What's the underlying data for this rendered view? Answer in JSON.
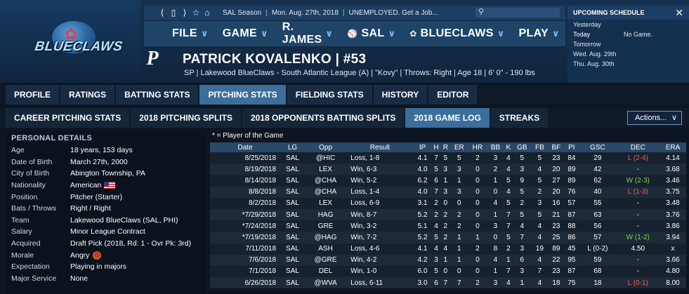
{
  "topbar": {
    "league": "SAL Season",
    "date": "Mon. Aug. 27th, 2018",
    "status": "UNEMPLOYED. Get a Job..."
  },
  "brand": {
    "logo_text": "BLUECLAWS",
    "player_team_logo": "P"
  },
  "mainnav": {
    "file": "FILE",
    "game": "GAME",
    "manager": "R. JAMES",
    "league": "SAL",
    "team": "BLUECLAWS",
    "play": "PLAY"
  },
  "player": {
    "name": "PATRICK KOVALENKO  |  #53",
    "info": "SP | Lakewood BlueClaws - South Atlantic League (A)  |  \"Kovy\"  |  Throws: Right  |  Age 18  |  6' 0\" - 190 lbs"
  },
  "schedule": {
    "title": "UPCOMING SCHEDULE",
    "rows": [
      {
        "day": "Yesterday",
        "info": ""
      },
      {
        "day": "Today",
        "info": "No Game."
      },
      {
        "day": "Tomorrow",
        "info": ""
      },
      {
        "day": "Wed. Aug. 29th",
        "info": ""
      },
      {
        "day": "Thu. Aug. 30th",
        "info": ""
      }
    ]
  },
  "tabs": [
    "PROFILE",
    "RATINGS",
    "BATTING STATS",
    "PITCHING STATS",
    "FIELDING STATS",
    "HISTORY",
    "EDITOR"
  ],
  "subtabs": [
    "CAREER PITCHING STATS",
    "2018 PITCHING SPLITS",
    "2018 OPPONENTS BATTING SPLITS",
    "2018 GAME LOG",
    "STREAKS"
  ],
  "actions_label": "Actions...",
  "personal": {
    "title": "PERSONAL DETAILS",
    "rows": [
      {
        "k": "Age",
        "v": "18 years, 153 days"
      },
      {
        "k": "Date of Birth",
        "v": "March 27th, 2000"
      },
      {
        "k": "City of Birth",
        "v": "Abington Township, PA"
      },
      {
        "k": "Nationality",
        "v": "American"
      },
      {
        "k": "Position",
        "v": "Pitcher (Starter)"
      },
      {
        "k": "Bats / Throws",
        "v": "Right / Right"
      },
      {
        "k": "Team",
        "v": "Lakewood BlueClaws (SAL, PHI)"
      },
      {
        "k": "Salary",
        "v": "Minor League Contract"
      },
      {
        "k": "Acquired",
        "v": "Draft Pick (2018, Rd: 1 - Ovr Pk: 3rd)"
      },
      {
        "k": "Morale",
        "v": "Angry"
      },
      {
        "k": "Expectation",
        "v": "Playing in majors"
      },
      {
        "k": "Major Service",
        "v": "None"
      }
    ]
  },
  "gamelog": {
    "note": "* = Player of the Game",
    "headers": [
      "Date",
      "LG",
      "Opp",
      "Result",
      "IP",
      "H",
      "R",
      "ER",
      "HR",
      "BB",
      "K",
      "GB",
      "FB",
      "BF",
      "PI",
      "GSC",
      "DEC",
      "ERA"
    ],
    "rows": [
      [
        "8/25/2018",
        "SAL",
        "@HIC",
        "Loss, 1-8",
        "4.1",
        "7",
        "5",
        "5",
        "2",
        "3",
        "4",
        "5",
        "5",
        "23",
        "84",
        "29",
        "L (2-4)",
        "4.14"
      ],
      [
        "8/19/2018",
        "SAL",
        "LEX",
        "Win, 6-3",
        "4.0",
        "5",
        "3",
        "3",
        "0",
        "2",
        "4",
        "3",
        "4",
        "20",
        "89",
        "42",
        "-",
        "3.68"
      ],
      [
        "8/14/2018",
        "SAL",
        "@CHA",
        "Win, 5-2",
        "6.2",
        "6",
        "1",
        "1",
        "0",
        "1",
        "5",
        "9",
        "5",
        "27",
        "89",
        "62",
        "W (2-3)",
        "3.46"
      ],
      [
        "8/8/2018",
        "SAL",
        "@CHA",
        "Loss, 1-4",
        "4.0",
        "7",
        "3",
        "3",
        "0",
        "0",
        "4",
        "5",
        "2",
        "20",
        "76",
        "40",
        "L (1-3)",
        "3.75"
      ],
      [
        "8/2/2018",
        "SAL",
        "LEX",
        "Loss, 6-9",
        "3.1",
        "2",
        "0",
        "0",
        "0",
        "4",
        "5",
        "2",
        "3",
        "16",
        "57",
        "55",
        "-",
        "3.48"
      ],
      [
        "*7/29/2018",
        "SAL",
        "HAG",
        "Win, 8-7",
        "5.2",
        "2",
        "2",
        "2",
        "0",
        "1",
        "7",
        "5",
        "5",
        "21",
        "87",
        "63",
        "-",
        "3.76"
      ],
      [
        "*7/24/2018",
        "SAL",
        "GRE",
        "Win, 3-2",
        "5.1",
        "4",
        "2",
        "2",
        "0",
        "3",
        "7",
        "4",
        "4",
        "23",
        "88",
        "56",
        "-",
        "3.86"
      ],
      [
        "*7/19/2018",
        "SAL",
        "@HAG",
        "Win, 7-2",
        "5.2",
        "5",
        "2",
        "1",
        "1",
        "0",
        "5",
        "7",
        "4",
        "25",
        "86",
        "57",
        "W (1-2)",
        "3.94"
      ],
      [
        "7/11/2018",
        "SAL",
        "ASH",
        "Loss, 4-6",
        "4.1",
        "4",
        "4",
        "1",
        "2",
        "8",
        "2",
        "3",
        "19",
        "89",
        "45",
        "L (0-2)",
        "4.50",
        "x"
      ],
      [
        "7/6/2018",
        "SAL",
        "@GRE",
        "Win, 4-2",
        "4.2",
        "3",
        "1",
        "1",
        "0",
        "4",
        "1",
        "6",
        "4",
        "22",
        "95",
        "59",
        "-",
        "3.66"
      ],
      [
        "7/1/2018",
        "SAL",
        "DEL",
        "Win, 1-0",
        "6.0",
        "5",
        "0",
        "0",
        "0",
        "1",
        "7",
        "3",
        "7",
        "23",
        "87",
        "68",
        "-",
        "4.80"
      ],
      [
        "6/26/2018",
        "SAL",
        "@WVA",
        "Loss, 6-11",
        "3.0",
        "6",
        "7",
        "7",
        "2",
        "3",
        "4",
        "1",
        "4",
        "18",
        "75",
        "18",
        "L (0-1)",
        "8.00"
      ]
    ]
  }
}
